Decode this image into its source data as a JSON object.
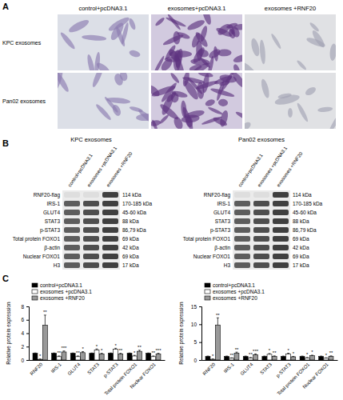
{
  "panels": {
    "A": {
      "label": "A",
      "columns": [
        "control+pcDNA3.1",
        "exosomes+pcDNA3.1",
        "exosomes +RNF20"
      ],
      "rows": [
        "KPC exosomes",
        "Pan02 exosomes"
      ]
    },
    "B": {
      "label": "B",
      "blots": [
        {
          "title": "KPC exosomes",
          "lanes": [
            "control+pcDNA3.1",
            "exosomes +pcDNA3.1",
            "exosomes +RNF20"
          ],
          "rows": [
            {
              "protein": "RNF20-flag",
              "size": "114 kDa"
            },
            {
              "protein": "IRS-1",
              "size": "170-185 kDa"
            },
            {
              "protein": "GLUT4",
              "size": "45-60 kDa"
            },
            {
              "protein": "STAT3",
              "size": "88 kDa"
            },
            {
              "protein": "p-STAT3",
              "size": "86,79 kDa"
            },
            {
              "protein": "Total protein FOXO1",
              "size": "69 kDa"
            },
            {
              "protein": "β-actin",
              "size": "42 kDa"
            },
            {
              "protein": "Nuclear FOXO1",
              "size": "69 kDa"
            },
            {
              "protein": "H3",
              "size": "17 kDa"
            }
          ]
        },
        {
          "title": "Pan02 exosomes",
          "lanes": [
            "control+pcDNA3.1",
            "exosomes +pcDNA3.1",
            "exosomes +RNF20"
          ],
          "rows": [
            {
              "protein": "RNF20-flag",
              "size": "114 kDa"
            },
            {
              "protein": "IRS-1",
              "size": "170-185 kDa"
            },
            {
              "protein": "GLUT4",
              "size": "45-60 kDa"
            },
            {
              "protein": "STAT3",
              "size": "88 kDa"
            },
            {
              "protein": "p-STAT3",
              "size": "86,79 kDa"
            },
            {
              "protein": "Total protein FOXO1",
              "size": "69 kDa"
            },
            {
              "protein": "β-actin",
              "size": "42 kDa"
            },
            {
              "protein": "Nuclear FOXO1",
              "size": "69 kDa"
            },
            {
              "protein": "H3",
              "size": "17 kDa"
            }
          ]
        }
      ]
    },
    "C": {
      "label": "C"
    }
  },
  "chart_data": [
    {
      "type": "bar",
      "categories": [
        "RNF20",
        "IRS-1",
        "GLUT4",
        "STAT3",
        "p-STAT3",
        "Total protein FOXO1",
        "Nuclear FOXO1"
      ],
      "series": [
        {
          "name": "control+pcDNA3.1",
          "color": "#000000",
          "values": [
            1,
            1,
            1,
            1,
            1,
            1,
            1
          ],
          "errors": [
            0.05,
            0.05,
            0.05,
            0.05,
            0.05,
            0.05,
            0.05
          ]
        },
        {
          "name": "exosomes +pcDNA3.1",
          "color": "#ffffff",
          "values": [
            0.1,
            0.5,
            0.5,
            1.5,
            1.6,
            0.6,
            0.5
          ],
          "errors": [
            0.05,
            0.1,
            0.1,
            0.15,
            0.15,
            0.1,
            0.1
          ],
          "significance": [
            "*",
            "**",
            "**",
            "*",
            "*",
            "*",
            "**"
          ]
        },
        {
          "name": "exosomes +RNF20",
          "color": "#999999",
          "values": [
            5.2,
            1.2,
            1.1,
            0.9,
            0.9,
            1.3,
            0.9
          ],
          "errors": [
            1.5,
            0.15,
            0.15,
            0.1,
            0.1,
            0.15,
            0.1
          ],
          "significance": [
            "**",
            "***",
            "*",
            "*",
            "**",
            "**",
            "***"
          ]
        }
      ],
      "y_label": "Relative protein expression",
      "ylim": [
        0,
        8
      ],
      "yticks": [
        0,
        2,
        4,
        6,
        8
      ],
      "legend": "top-left"
    },
    {
      "type": "bar",
      "categories": [
        "RNF20",
        "IRS-1",
        "GLUT4",
        "STAT3",
        "p-STAT3",
        "Total protein FOXO1",
        "Nuclear FOXO1"
      ],
      "series": [
        {
          "name": "control+pcDNA3.1",
          "color": "#000000",
          "values": [
            1,
            1,
            1,
            1,
            1,
            1,
            1
          ],
          "errors": [
            0.1,
            0.1,
            0.1,
            0.1,
            0.1,
            0.1,
            0.1
          ]
        },
        {
          "name": "exosomes +pcDNA3.1",
          "color": "#ffffff",
          "values": [
            0.2,
            0.5,
            0.6,
            1.6,
            1.7,
            0.6,
            0.5
          ],
          "errors": [
            0.1,
            0.1,
            0.1,
            0.2,
            0.2,
            0.1,
            0.1
          ],
          "significance": [
            "*",
            "**",
            "**",
            "*",
            "*",
            "*",
            "*"
          ]
        },
        {
          "name": "exosomes +RNF20",
          "color": "#999999",
          "values": [
            9.8,
            1.9,
            1.5,
            1.0,
            0.9,
            1.2,
            1.0
          ],
          "errors": [
            2.0,
            0.3,
            0.2,
            0.15,
            0.1,
            0.15,
            0.15
          ],
          "significance": [
            "**",
            "**",
            "***",
            "**",
            "*",
            "*",
            "**"
          ]
        }
      ],
      "y_label": "Relative protein expression",
      "ylim": [
        0,
        15
      ],
      "yticks": [
        0,
        5,
        10,
        15
      ],
      "legend": "top-left"
    }
  ]
}
